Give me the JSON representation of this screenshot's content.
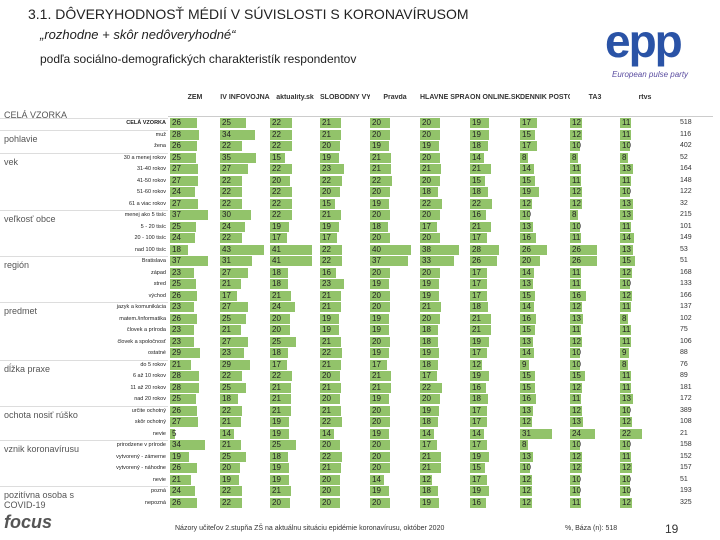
{
  "header": {
    "title": "3.1. DÔVERYHODNOSŤ MÉDIÍ V SÚVISLOSTI S KORONAVÍRUSOM",
    "subtitle": "„rozhodne + skôr nedôveryhodné“",
    "subtitle2": "podľa sociálno-demografických charakteristík respondentov",
    "logo": "epp",
    "logo_tagline": "European pulse party"
  },
  "table": {
    "bar_color": "#92c36a",
    "columns": [
      "ZEM",
      "IV INFOVOJNA",
      "aktuality.sk",
      "SLOBODNÝ VYSIELAČ",
      "Pravda",
      "HLAVNÉ SPRÁVY",
      "ON ONLINE.SK",
      "DENNÍK POSTOJ",
      "TA3",
      "rtvs"
    ],
    "groups": [
      {
        "label": "CELÁ VZORKA",
        "rows": [
          {
            "label": "CELÁ VZORKA",
            "values": [
              26,
              25,
              22,
              21,
              20,
              20,
              19,
              17,
              12,
              11
            ],
            "n": 518
          }
        ]
      },
      {
        "label": "pohlavie",
        "rows": [
          {
            "label": "muž",
            "values": [
              28,
              34,
              22,
              21,
              20,
              20,
              19,
              15,
              12,
              11
            ],
            "n": 116
          },
          {
            "label": "žena",
            "values": [
              26,
              22,
              22,
              20,
              19,
              19,
              18,
              17,
              10,
              10
            ],
            "n": 402
          }
        ]
      },
      {
        "label": "vek",
        "rows": [
          {
            "label": "30 a menej rokov",
            "values": [
              25,
              35,
              15,
              19,
              21,
              20,
              14,
              8,
              8,
              8
            ],
            "n": 52
          },
          {
            "label": "31-40 rokov",
            "values": [
              27,
              27,
              22,
              23,
              21,
              21,
              21,
              14,
              11,
              13
            ],
            "n": 164
          },
          {
            "label": "41-50 rokov",
            "values": [
              27,
              22,
              20,
              22,
              22,
              20,
              15,
              15,
              11,
              11
            ],
            "n": 148
          },
          {
            "label": "51-60 rokov",
            "values": [
              24,
              22,
              22,
              20,
              20,
              18,
              18,
              19,
              12,
              10
            ],
            "n": 122
          },
          {
            "label": "61 a viac rokov",
            "values": [
              27,
              22,
              22,
              15,
              19,
              22,
              22,
              12,
              12,
              13
            ],
            "n": 32
          }
        ]
      },
      {
        "label": "veľkosť obce",
        "rows": [
          {
            "label": "menej ako 5 tisíc",
            "values": [
              37,
              30,
              22,
              21,
              20,
              20,
              16,
              10,
              8,
              13
            ],
            "n": 215
          },
          {
            "label": "5 - 20 tisíc",
            "values": [
              25,
              24,
              19,
              19,
              18,
              17,
              21,
              13,
              10,
              11
            ],
            "n": 101
          },
          {
            "label": "20 - 100 tisíc",
            "values": [
              24,
              22,
              17,
              17,
              20,
              20,
              17,
              16,
              11,
              14
            ],
            "n": 149
          },
          {
            "label": "nad 100 tisíc",
            "values": [
              18,
              43,
              41,
              22,
              40,
              38,
              28,
              26,
              26,
              13
            ],
            "n": 53
          }
        ]
      },
      {
        "label": "región",
        "rows": [
          {
            "label": "Bratislava",
            "values": [
              37,
              31,
              41,
              22,
              37,
              33,
              26,
              20,
              26,
              15
            ],
            "n": 51
          },
          {
            "label": "západ",
            "values": [
              23,
              27,
              18,
              16,
              20,
              20,
              17,
              14,
              11,
              12
            ],
            "n": 168
          },
          {
            "label": "stred",
            "values": [
              25,
              21,
              18,
              23,
              19,
              19,
              17,
              13,
              11,
              10
            ],
            "n": 133
          },
          {
            "label": "východ",
            "values": [
              26,
              17,
              21,
              21,
              20,
              19,
              17,
              15,
              16,
              12
            ],
            "n": 166
          }
        ]
      },
      {
        "label": "predmet",
        "rows": [
          {
            "label": "jazyk a komunikácia",
            "values": [
              23,
              27,
              24,
              21,
              20,
              21,
              18,
              14,
              12,
              11
            ],
            "n": 137
          },
          {
            "label": "matem./informatika",
            "values": [
              26,
              25,
              20,
              19,
              19,
              20,
              21,
              16,
              13,
              8
            ],
            "n": 102
          },
          {
            "label": "človek a príroda",
            "values": [
              23,
              21,
              20,
              19,
              19,
              18,
              21,
              15,
              11,
              11
            ],
            "n": 75
          },
          {
            "label": "človek a spoločnosť",
            "values": [
              23,
              27,
              25,
              21,
              20,
              18,
              19,
              13,
              12,
              11
            ],
            "n": 106
          },
          {
            "label": "ostatné",
            "values": [
              29,
              23,
              18,
              22,
              19,
              19,
              17,
              14,
              10,
              9
            ],
            "n": 88
          }
        ]
      },
      {
        "label": "dĺžka praxe",
        "rows": [
          {
            "label": "do 5 rokov",
            "values": [
              21,
              29,
              17,
              21,
              17,
              18,
              12,
              9,
              10,
              8
            ],
            "n": 76
          },
          {
            "label": "6 až 10 rokov",
            "values": [
              28,
              22,
              22,
              20,
              21,
              17,
              19,
              15,
              15,
              11
            ],
            "n": 89
          },
          {
            "label": "11 až 20 rokov",
            "values": [
              28,
              25,
              21,
              21,
              21,
              22,
              16,
              15,
              12,
              11
            ],
            "n": 181
          },
          {
            "label": "nad 20 rokov",
            "values": [
              25,
              18,
              21,
              20,
              19,
              20,
              18,
              16,
              11,
              13
            ],
            "n": 172
          }
        ]
      },
      {
        "label": "ochota nosiť rúško",
        "rows": [
          {
            "label": "určite ochotný",
            "values": [
              26,
              22,
              21,
              21,
              20,
              19,
              17,
              13,
              12,
              10
            ],
            "n": 389
          },
          {
            "label": "skôr ochotný",
            "values": [
              27,
              21,
              19,
              22,
              20,
              18,
              17,
              12,
              13,
              12
            ],
            "n": 108
          },
          {
            "label": "nevie",
            "values": [
              5,
              14,
              19,
              14,
              19,
              14,
              14,
              31,
              24,
              22
            ],
            "n": 21
          }
        ]
      },
      {
        "label": "vznik koronavírusu",
        "rows": [
          {
            "label": "prirodzene v prírode",
            "values": [
              34,
              21,
              25,
              20,
              20,
              17,
              17,
              8,
              10,
              10
            ],
            "n": 158
          },
          {
            "label": "vytvorený - zámerne",
            "values": [
              19,
              25,
              18,
              22,
              20,
              21,
              19,
              13,
              12,
              11
            ],
            "n": 152
          },
          {
            "label": "vytvorený - náhodne",
            "values": [
              26,
              20,
              19,
              21,
              20,
              21,
              15,
              10,
              12,
              12
            ],
            "n": 157
          },
          {
            "label": "nevie",
            "values": [
              21,
              19,
              19,
              20,
              14,
              12,
              17,
              12,
              10,
              10
            ],
            "n": 51
          }
        ]
      },
      {
        "label": "pozitívna osoba s COVID-19",
        "rows": [
          {
            "label": "pozná",
            "values": [
              24,
              22,
              21,
              20,
              19,
              18,
              19,
              12,
              10,
              10
            ],
            "n": 193
          },
          {
            "label": "nepozná",
            "values": [
              26,
              22,
              20,
              20,
              20,
              19,
              16,
              12,
              11,
              12
            ],
            "n": 325
          }
        ]
      }
    ]
  },
  "footer": {
    "brand": "focus",
    "note": "Názory učiteľov 2.stupňa ZŠ na aktuálnu situáciu epidémie koronavírusu, október 2020",
    "base": "%, Báza (n): 518",
    "page": "19"
  }
}
